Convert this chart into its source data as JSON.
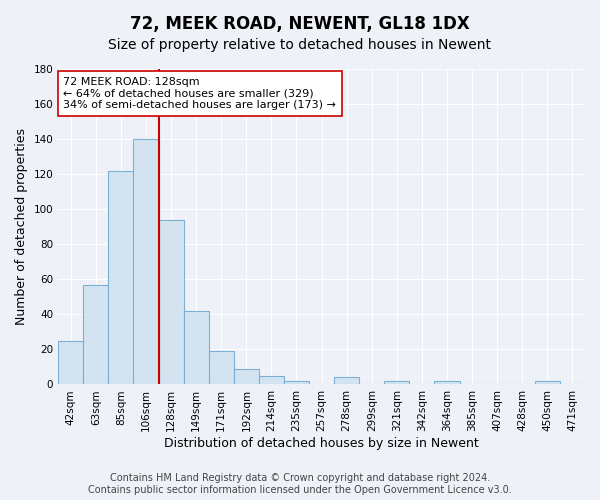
{
  "title": "72, MEEK ROAD, NEWENT, GL18 1DX",
  "subtitle": "Size of property relative to detached houses in Newent",
  "xlabel": "Distribution of detached houses by size in Newent",
  "ylabel": "Number of detached properties",
  "bar_labels": [
    "42sqm",
    "63sqm",
    "85sqm",
    "106sqm",
    "128sqm",
    "149sqm",
    "171sqm",
    "192sqm",
    "214sqm",
    "235sqm",
    "257sqm",
    "278sqm",
    "299sqm",
    "321sqm",
    "342sqm",
    "364sqm",
    "385sqm",
    "407sqm",
    "428sqm",
    "450sqm",
    "471sqm"
  ],
  "bar_values": [
    25,
    57,
    122,
    140,
    94,
    42,
    19,
    9,
    5,
    2,
    0,
    4,
    0,
    2,
    0,
    2,
    0,
    0,
    0,
    2,
    0
  ],
  "bar_color": "#d4e3f0",
  "bar_edge_color": "#7bafd4",
  "ylim": [
    0,
    180
  ],
  "yticks": [
    0,
    20,
    40,
    60,
    80,
    100,
    120,
    140,
    160,
    180
  ],
  "vline_x": 3.5,
  "vline_color": "#cc0000",
  "annotation_line1": "72 MEEK ROAD: 128sqm",
  "annotation_line2": "← 64% of detached houses are smaller (329)",
  "annotation_line3": "34% of semi-detached houses are larger (173) →",
  "annotation_box_color": "#ffffff",
  "annotation_box_edge": "#cc0000",
  "footer_text": "Contains HM Land Registry data © Crown copyright and database right 2024.\nContains public sector information licensed under the Open Government Licence v3.0.",
  "background_color": "#eef2f8",
  "grid_color": "#ffffff",
  "title_fontsize": 12,
  "subtitle_fontsize": 10,
  "axis_label_fontsize": 9,
  "tick_fontsize": 7.5,
  "annotation_fontsize": 8,
  "footer_fontsize": 7
}
